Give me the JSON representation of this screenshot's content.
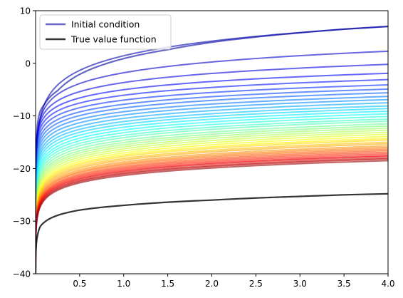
{
  "chart_data": {
    "type": "line",
    "title": "",
    "xlabel": "",
    "ylabel": "",
    "xlim": [
      0.0001,
      4.0
    ],
    "ylim": [
      -40,
      10
    ],
    "x_ticks": [
      0.5,
      1.0,
      1.5,
      2.0,
      2.5,
      3.0,
      3.5,
      4.0
    ],
    "x_tick_labels": [
      "0.5",
      "1.0",
      "1.5",
      "2.0",
      "2.5",
      "3.0",
      "3.5",
      "4.0"
    ],
    "y_ticks": [
      -40,
      -30,
      -20,
      -10,
      0,
      10
    ],
    "y_tick_labels": [
      "−40",
      "−30",
      "−20",
      "−10",
      "0",
      "10"
    ],
    "grid": false,
    "legend_position": "top-left",
    "colormap": "jet",
    "series": [
      {
        "name": "Initial condition",
        "color": "#00009f",
        "opacity": 0.6,
        "x": [
          0.0001,
          0.01,
          0.02,
          0.05,
          0.1,
          0.25,
          0.5,
          1.0,
          1.5,
          2.0,
          2.5,
          3.0,
          3.5,
          4.0
        ],
        "y": [
          -39.5,
          -14.5,
          -11.8,
          -9.2,
          -7.8,
          -5.2,
          -2.1,
          0.9,
          2.6,
          4.0,
          5.0,
          5.8,
          6.5,
          7.0
        ]
      },
      {
        "name": "True value function",
        "color": "#000000",
        "opacity": 0.8,
        "x": [
          0.0001,
          0.005,
          0.01,
          0.02,
          0.05,
          0.1,
          0.25,
          0.5,
          1.0,
          1.5,
          2.0,
          2.5,
          3.0,
          3.5,
          4.0
        ],
        "y": [
          -40,
          -35.2,
          -34.0,
          -32.9,
          -31.1,
          -30.2,
          -28.9,
          -27.9,
          -27.0,
          -26.4,
          -26.0,
          -25.6,
          -25.3,
          -25.0,
          -24.8
        ]
      }
    ],
    "iterations": {
      "count": 40,
      "value_at_x4": [
        7.0,
        2.3,
        -0.2,
        -1.9,
        -3.1,
        -4.1,
        -4.9,
        -5.6,
        -6.3,
        -6.9,
        -7.5,
        -8.1,
        -8.6,
        -9.1,
        -9.6,
        -10.1,
        -10.6,
        -11.0,
        -11.5,
        -11.9,
        -12.3,
        -12.7,
        -13.1,
        -13.5,
        -13.9,
        -14.3,
        -14.6,
        -15.0,
        -15.3,
        -15.7,
        -16.0,
        -16.3,
        -16.6,
        -16.9,
        -17.2,
        -17.5,
        -17.7,
        -18.0,
        -18.2,
        -18.5
      ],
      "value_at_x0.1": [
        -7.8,
        -8.6,
        -9.4,
        -10.2,
        -11.0,
        -11.8,
        -12.6,
        -13.3,
        -14.0,
        -14.7,
        -15.4,
        -16.0,
        -16.6,
        -17.2,
        -17.8,
        -18.3,
        -18.8,
        -19.3,
        -19.8,
        -20.3,
        -20.7,
        -21.1,
        -21.5,
        -21.9,
        -22.3,
        -22.6,
        -22.9,
        -23.2,
        -23.5,
        -23.8,
        -24.1,
        -24.3,
        -24.6,
        -24.8,
        -25.0,
        -25.2,
        -25.4,
        -25.6,
        -25.8,
        -26.0
      ],
      "value_at_x0": -40
    },
    "legend": [
      "Initial condition",
      "True value function"
    ]
  }
}
